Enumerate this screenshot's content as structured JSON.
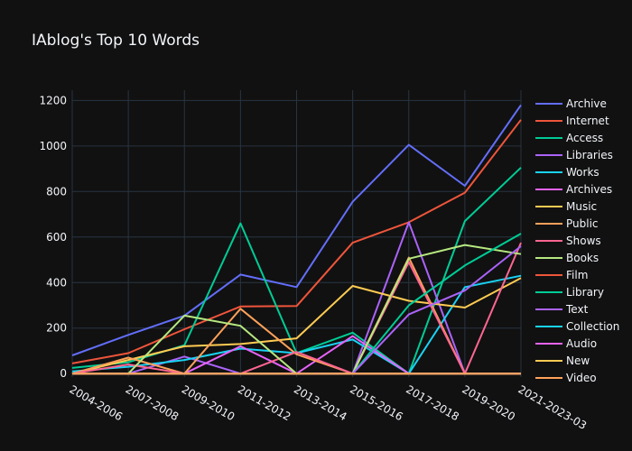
{
  "chart_data": {
    "type": "line",
    "title": "IAblog's Top 10 Words",
    "xlabel": "",
    "ylabel": "",
    "categories": [
      "2004-2006",
      "2007-2008",
      "2009-2010",
      "2011-2012",
      "2013-2014",
      "2015-2016",
      "2017-2018",
      "2019-2020",
      "2021-2023-03"
    ],
    "y_ticks": [
      0,
      200,
      400,
      600,
      800,
      1000,
      1200
    ],
    "ylim": [
      -15,
      1245
    ],
    "grid": true,
    "legend_position": "right",
    "series": [
      {
        "name": "Archive",
        "color": "#636efa",
        "values": [
          80,
          170,
          255,
          435,
          380,
          755,
          1005,
          825,
          1180
        ]
      },
      {
        "name": "Internet",
        "color": "#ef553b",
        "values": [
          45,
          90,
          195,
          295,
          297,
          575,
          665,
          795,
          1115
        ]
      },
      {
        "name": "Access",
        "color": "#00cc96",
        "values": [
          25,
          50,
          125,
          660,
          90,
          180,
          0,
          670,
          905
        ]
      },
      {
        "name": "Libraries",
        "color": "#ab63fa",
        "values": [
          0,
          0,
          75,
          0,
          0,
          0,
          665,
          0,
          0
        ]
      },
      {
        "name": "Works",
        "color": "#19d3f3",
        "values": [
          10,
          30,
          60,
          110,
          90,
          150,
          0,
          380,
          430
        ]
      },
      {
        "name": "Archives",
        "color": "#e763fa",
        "values": [
          0,
          0,
          0,
          120,
          0,
          165,
          0,
          0,
          0
        ]
      },
      {
        "name": "Music",
        "color": "#fecb52",
        "values": [
          0,
          60,
          120,
          130,
          155,
          385,
          320,
          290,
          420
        ]
      },
      {
        "name": "Public",
        "color": "#ffa15a",
        "values": [
          0,
          70,
          0,
          285,
          85,
          0,
          510,
          0,
          0
        ]
      },
      {
        "name": "Shows",
        "color": "#ff6692",
        "values": [
          0,
          40,
          0,
          0,
          95,
          0,
          490,
          0,
          575
        ]
      },
      {
        "name": "Books",
        "color": "#b6e880",
        "values": [
          0,
          0,
          255,
          210,
          0,
          0,
          505,
          565,
          525
        ]
      },
      {
        "name": "Film",
        "color": "#ef553b",
        "values": [
          0,
          0,
          0,
          0,
          0,
          0,
          0,
          0,
          0
        ]
      },
      {
        "name": "Library",
        "color": "#00cc96",
        "values": [
          0,
          0,
          0,
          0,
          0,
          0,
          300,
          475,
          615
        ]
      },
      {
        "name": "Text",
        "color": "#ab63fa",
        "values": [
          0,
          0,
          0,
          0,
          0,
          0,
          260,
          365,
          560
        ]
      },
      {
        "name": "Collection",
        "color": "#19d3f3",
        "values": [
          0,
          0,
          0,
          0,
          0,
          0,
          0,
          0,
          0
        ]
      },
      {
        "name": "Audio",
        "color": "#e763fa",
        "values": [
          0,
          0,
          0,
          0,
          0,
          0,
          0,
          0,
          0
        ]
      },
      {
        "name": "New",
        "color": "#fecb52",
        "values": [
          0,
          0,
          0,
          0,
          0,
          0,
          0,
          0,
          0
        ]
      },
      {
        "name": "Video",
        "color": "#ffa15a",
        "values": [
          0,
          0,
          0,
          0,
          0,
          0,
          0,
          0,
          0
        ]
      }
    ]
  }
}
